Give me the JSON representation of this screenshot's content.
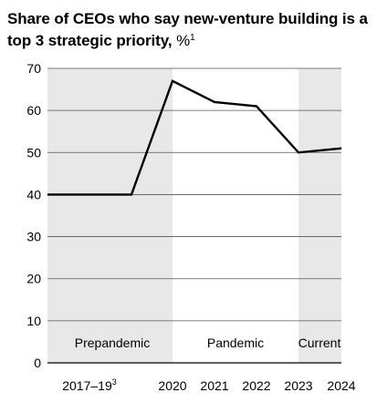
{
  "chart_data": {
    "type": "line",
    "title": "Share of CEOs who say new-venture building is a top 3 strategic priority,",
    "unit": "%",
    "footnote_mark": "1",
    "x_labels": [
      "2017–19",
      "2020",
      "2021",
      "2022",
      "2023",
      "2024"
    ],
    "x_label_footnotes": [
      "3",
      "",
      "",
      "",
      "",
      ""
    ],
    "series": [
      {
        "x": [
          "2017–19 start",
          "2017–19 end",
          "2020",
          "2021",
          "2022",
          "2023",
          "2024"
        ],
        "values": [
          40,
          40,
          67,
          62,
          61,
          50,
          51
        ]
      }
    ],
    "y_ticks": [
      0,
      10,
      20,
      30,
      40,
      50,
      60,
      70
    ],
    "ylim": [
      0,
      70
    ],
    "grid": true,
    "periods": [
      {
        "label": "Prepandemic",
        "shaded": true
      },
      {
        "label": "Pandemic",
        "shaded": false
      },
      {
        "label": "Current",
        "shaded": true
      }
    ],
    "colors": {
      "shade": "#e8e8e8",
      "line": "#000000",
      "grid": "#555555"
    }
  }
}
